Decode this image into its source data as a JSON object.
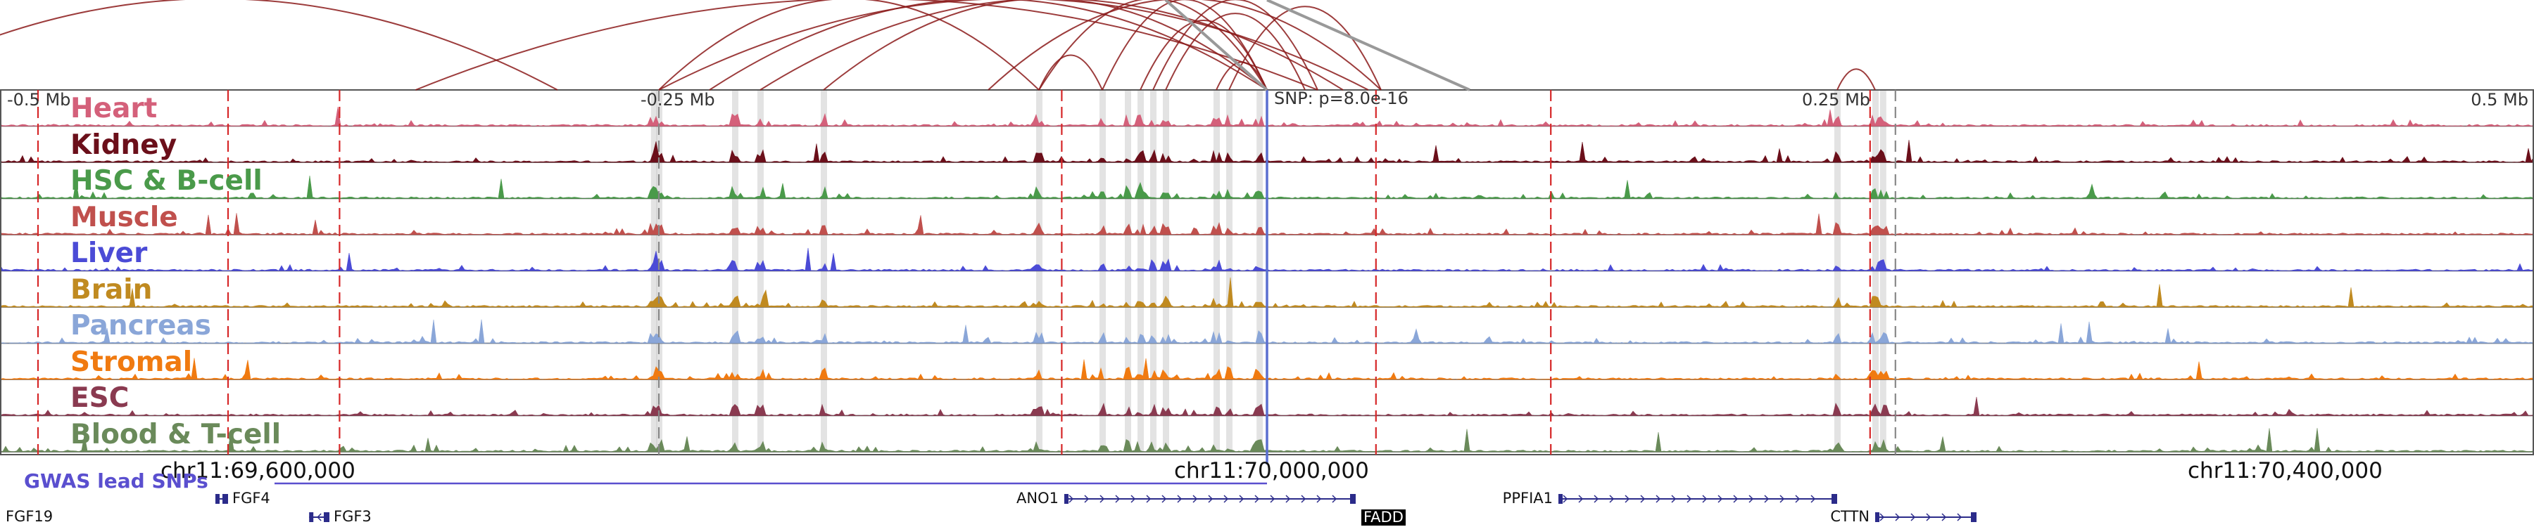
{
  "axis": {
    "ticks": [
      {
        "label": "-0.5 Mb",
        "pos": -0.5
      },
      {
        "label": "-0.25 Mb",
        "pos": -0.25
      },
      {
        "label": "0.25 Mb",
        "pos": 0.25
      },
      {
        "label": "0.5 Mb",
        "pos": 0.5
      }
    ],
    "snp_label": "SNP: p=8.0e-16"
  },
  "tracks": [
    {
      "name": "Heart",
      "color": "#d4607a"
    },
    {
      "name": "Kidney",
      "color": "#6b0f1a"
    },
    {
      "name": "HSC & B-cell",
      "color": "#4a9a4a"
    },
    {
      "name": "Muscle",
      "color": "#c0504d"
    },
    {
      "name": "Liver",
      "color": "#4b4bd6"
    },
    {
      "name": "Brain",
      "color": "#c08a20"
    },
    {
      "name": "Pancreas",
      "color": "#8aa6d8"
    },
    {
      "name": "Stromal",
      "color": "#f07a10"
    },
    {
      "name": "ESC",
      "color": "#8a3a50"
    },
    {
      "name": "Blood & T-cell",
      "color": "#6a8a5a"
    }
  ],
  "coordinates": [
    {
      "label": "chr11:69,600,000",
      "pos": -0.4
    },
    {
      "label": "chr11:70,000,000",
      "pos": 0.0
    },
    {
      "label": "chr11:70,400,000",
      "pos": 0.4
    }
  ],
  "gwas": {
    "label": "GWAS lead SNPs",
    "color": "#5a4fcf"
  },
  "genes": [
    {
      "name": "FGF19",
      "start": -0.51,
      "end": -0.5,
      "row": 1,
      "strand": "-",
      "boxed": false
    },
    {
      "name": "FGF4",
      "start": -0.415,
      "end": -0.41,
      "row": 0,
      "strand": "-",
      "boxed": false
    },
    {
      "name": "FGF3",
      "start": -0.378,
      "end": -0.37,
      "row": 1,
      "strand": "-",
      "boxed": false
    },
    {
      "name": "ANO1",
      "start": -0.08,
      "end": 0.035,
      "row": 0,
      "strand": "+",
      "boxed": false
    },
    {
      "name": "FADD",
      "start": 0.045,
      "end": 0.048,
      "row": 1,
      "strand": "+",
      "boxed": true
    },
    {
      "name": "PPFIA1",
      "start": 0.115,
      "end": 0.225,
      "row": 0,
      "strand": "+",
      "boxed": false
    },
    {
      "name": "CTTN",
      "start": 0.24,
      "end": 0.28,
      "row": 1,
      "strand": "+",
      "boxed": false
    }
  ],
  "colors": {
    "red_marker": "#d62728",
    "gray_marker": "#888888",
    "highlight": "#cccccc",
    "arc": "#8b1a1a",
    "arc_gray": "#999999",
    "border": "#555555"
  },
  "red_markers": [
    -0.485,
    -0.41,
    -0.366,
    -0.081,
    0.043,
    0.112,
    0.238
  ],
  "gray_markers": [
    -0.24,
    0.248
  ],
  "highlights": [
    -0.242,
    -0.24,
    -0.21,
    -0.2,
    -0.175,
    -0.09,
    -0.065,
    -0.055,
    -0.05,
    -0.045,
    -0.04,
    -0.02,
    -0.015,
    -0.003,
    0.225,
    0.24,
    0.243
  ],
  "snp_pos": 0.0
}
